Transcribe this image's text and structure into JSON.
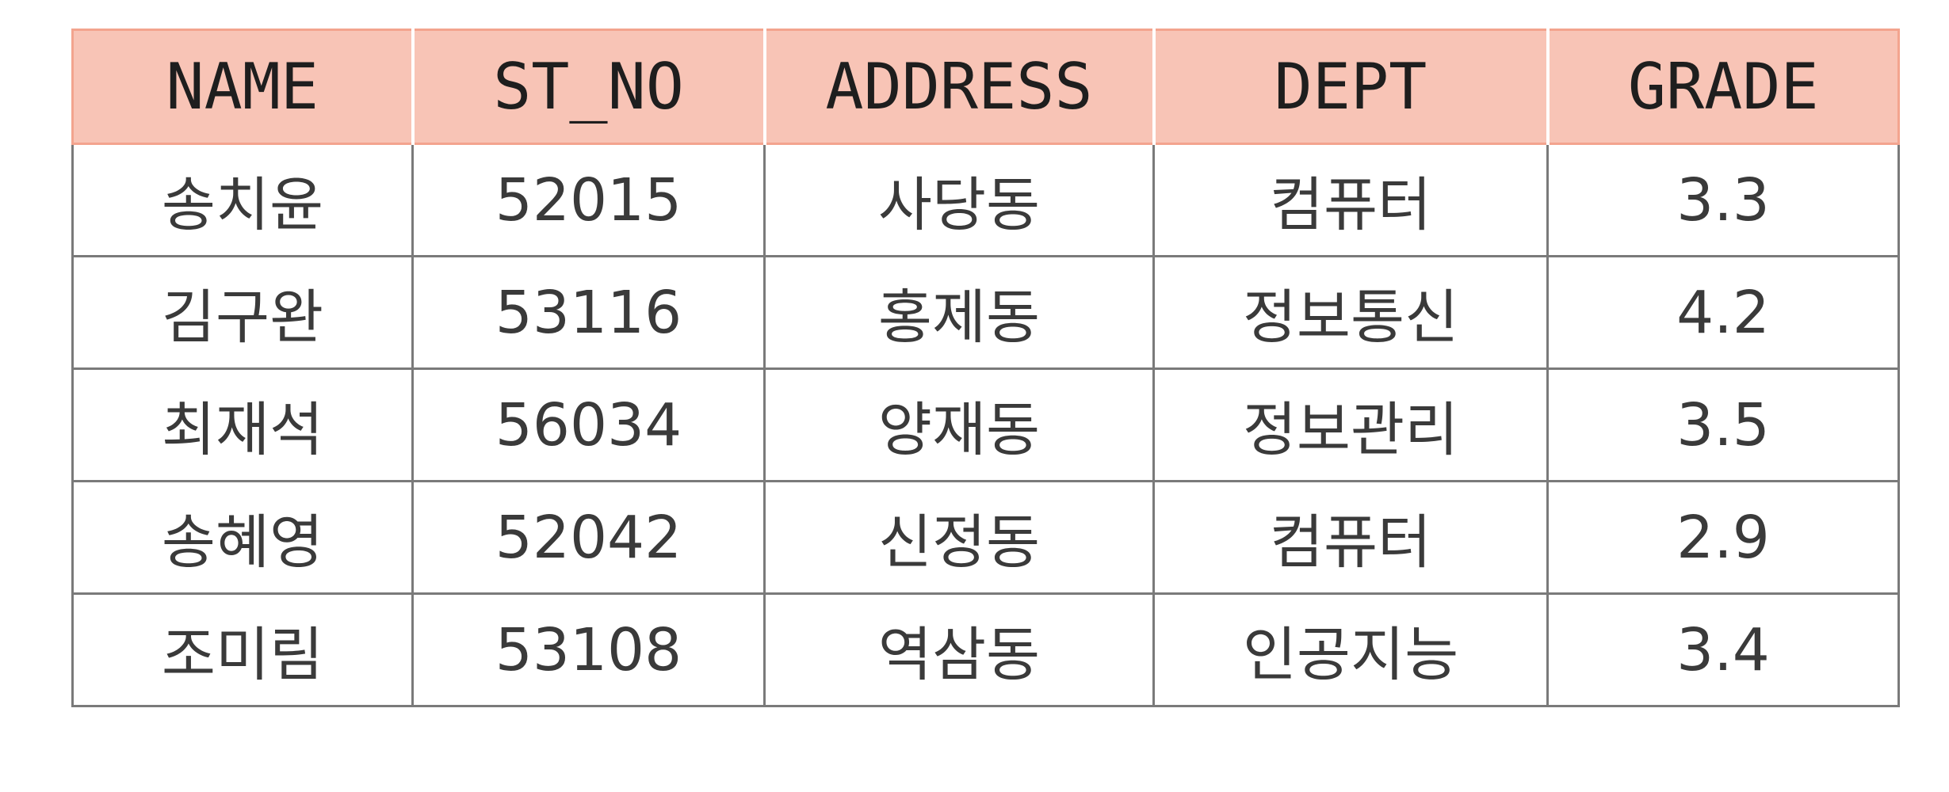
{
  "table": {
    "headers": [
      "NAME",
      "ST_NO",
      "ADDRESS",
      "DEPT",
      "GRADE"
    ],
    "rows": [
      [
        "송치윤",
        "52015",
        "사당동",
        "컴퓨터",
        "3.3"
      ],
      [
        "김구완",
        "53116",
        "홍제동",
        "정보통신",
        "4.2"
      ],
      [
        "최재석",
        "56034",
        "양재동",
        "정보관리",
        "3.5"
      ],
      [
        "송혜영",
        "52042",
        "신정동",
        "컴퓨터",
        "2.9"
      ],
      [
        "조미림",
        "53108",
        "역삼동",
        "인공지능",
        "3.4"
      ]
    ]
  },
  "colors": {
    "header_background": "#f8c4b6",
    "header_border": "#f3a48e",
    "cell_border": "#7a7a7a",
    "header_text": "#1e1e1e",
    "cell_text": "#3a3a3a"
  }
}
